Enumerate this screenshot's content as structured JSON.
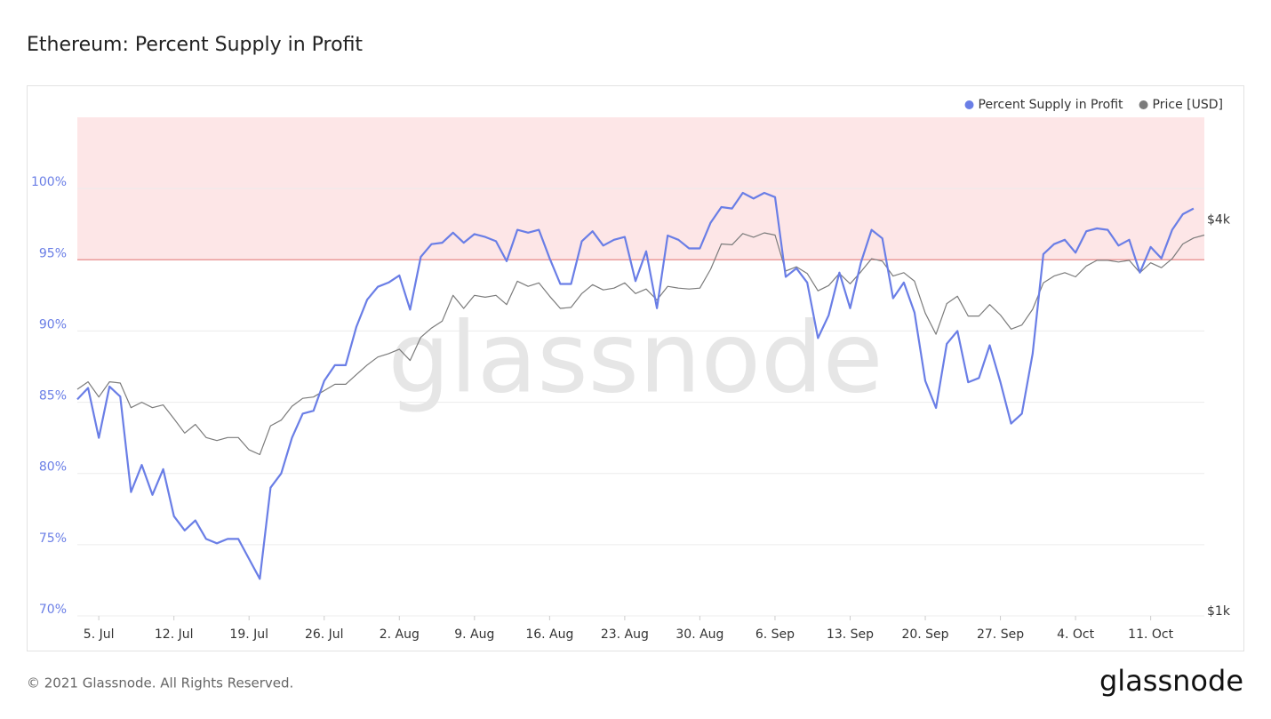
{
  "chart_data": {
    "type": "line",
    "title": "Ethereum: Percent Supply in Profit",
    "footer": "© 2021 Glassnode. All Rights Reserved.",
    "brand": "glassnode",
    "x": [
      null,
      null,
      "5. Jul",
      null,
      null,
      null,
      null,
      null,
      null,
      "12. Jul",
      null,
      null,
      null,
      null,
      null,
      null,
      "19. Jul",
      null,
      null,
      null,
      null,
      null,
      null,
      "26. Jul",
      null,
      null,
      null,
      null,
      null,
      null,
      "2. Aug",
      null,
      null,
      null,
      null,
      null,
      null,
      "9. Aug",
      null,
      null,
      null,
      null,
      null,
      null,
      "16. Aug",
      null,
      null,
      null,
      null,
      null,
      null,
      "23. Aug",
      null,
      null,
      null,
      null,
      null,
      null,
      "30. Aug",
      null,
      null,
      null,
      null,
      null,
      null,
      "6. Sep",
      null,
      null,
      null,
      null,
      null,
      null,
      "13. Sep",
      null,
      null,
      null,
      null,
      null,
      null,
      "20. Sep",
      null,
      null,
      null,
      null,
      null,
      null,
      "27. Sep",
      null,
      null,
      null,
      null,
      null,
      null,
      "4. Oct",
      null,
      null,
      null,
      null,
      null,
      null,
      "11. Oct",
      null,
      null,
      null,
      null,
      null
    ],
    "series": [
      {
        "name": "Percent Supply in Profit",
        "color": "#6a7ee6",
        "values": [
          85.2,
          86.0,
          82.5,
          86.1,
          85.4,
          78.7,
          80.6,
          78.5,
          80.3,
          77.0,
          76.0,
          76.7,
          75.4,
          75.1,
          75.4,
          75.4,
          74.0,
          72.6,
          79.0,
          80.0,
          82.5,
          84.2,
          84.4,
          86.5,
          87.6,
          87.6,
          90.3,
          92.2,
          93.1,
          93.4,
          93.9,
          91.5,
          95.2,
          96.1,
          96.2,
          96.9,
          96.2,
          96.8,
          96.6,
          96.3,
          94.9,
          97.1,
          96.9,
          97.1,
          95.1,
          93.3,
          93.3,
          96.3,
          97.0,
          96.0,
          96.4,
          96.6,
          93.5,
          95.6,
          91.6,
          96.7,
          96.4,
          95.8,
          95.8,
          97.6,
          98.7,
          98.6,
          99.7,
          99.3,
          99.7,
          99.4,
          93.8,
          94.4,
          93.4,
          89.5,
          91.1,
          94.1,
          91.6,
          94.8,
          97.1,
          96.5,
          92.3,
          93.4,
          91.3,
          86.5,
          84.6,
          89.1,
          90.0,
          86.4,
          86.7,
          89.0,
          86.4,
          83.5,
          84.2,
          88.4,
          95.4,
          96.1,
          96.4,
          95.5,
          97.0,
          97.2,
          97.1,
          96.0,
          96.4,
          94.1,
          95.9,
          95.1,
          97.1,
          98.2,
          98.6,
          null
        ]
      },
      {
        "name": "Price [USD]",
        "color": "#7b7b7b",
        "axis": "y2",
        "values": [
          2230,
          2290,
          2170,
          2290,
          2280,
          2090,
          2130,
          2090,
          2110,
          2010,
          1910,
          1970,
          1880,
          1860,
          1880,
          1880,
          1800,
          1770,
          1960,
          2000,
          2100,
          2160,
          2170,
          2220,
          2270,
          2270,
          2350,
          2430,
          2500,
          2530,
          2570,
          2470,
          2680,
          2770,
          2840,
          3110,
          2970,
          3110,
          3090,
          3110,
          3010,
          3270,
          3210,
          3250,
          3100,
          2970,
          2980,
          3130,
          3230,
          3170,
          3190,
          3250,
          3130,
          3180,
          3060,
          3210,
          3190,
          3180,
          3190,
          3410,
          3730,
          3720,
          3870,
          3820,
          3880,
          3850,
          3390,
          3440,
          3360,
          3160,
          3220,
          3360,
          3240,
          3380,
          3540,
          3510,
          3330,
          3370,
          3270,
          2920,
          2710,
          3020,
          3100,
          2890,
          2890,
          3010,
          2900,
          2760,
          2800,
          2960,
          3250,
          3330,
          3370,
          3320,
          3450,
          3520,
          3520,
          3500,
          3520,
          3370,
          3490,
          3430,
          3540,
          3730,
          3810,
          3850
        ]
      }
    ],
    "ylim": [
      70,
      105
    ],
    "yticks": [
      {
        "value": 70,
        "label": "70%"
      },
      {
        "value": 75,
        "label": "75%"
      },
      {
        "value": 80,
        "label": "80%"
      },
      {
        "value": 85,
        "label": "85%"
      },
      {
        "value": 90,
        "label": "90%"
      },
      {
        "value": 95,
        "label": "95%"
      },
      {
        "value": 100,
        "label": "100%"
      }
    ],
    "y2lim": [
      1000,
      5840
    ],
    "y2scale": "log",
    "y2ticks": [
      {
        "value": 1000,
        "label": "$1k"
      },
      {
        "value": 4000,
        "label": "$4k"
      }
    ],
    "threshold": 95,
    "threshold_color": "#fde6e7",
    "grid": true,
    "legend": "top-right"
  }
}
